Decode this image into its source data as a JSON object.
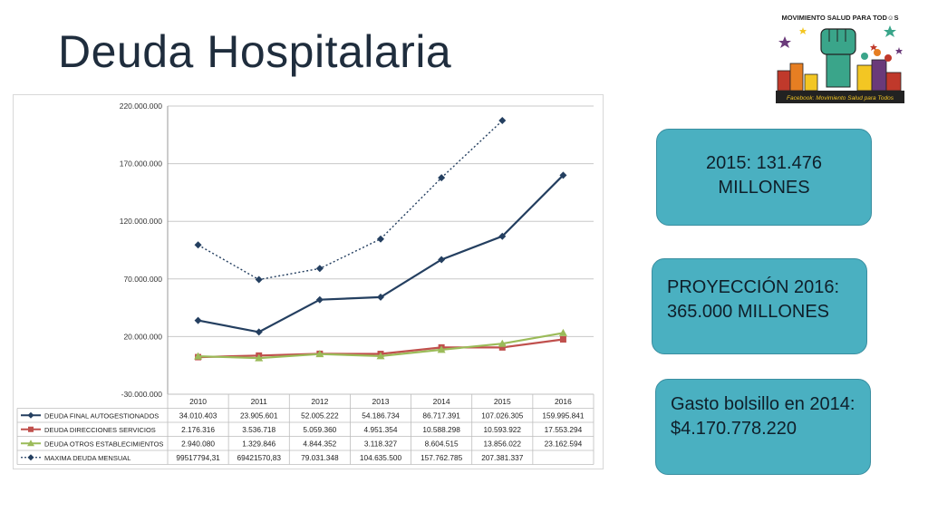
{
  "slide": {
    "title": "Deuda Hospitalaria"
  },
  "callouts": [
    {
      "text": "2015: 131.476 MILLONES"
    },
    {
      "text": "PROYECCIÓN 2016: 365.000 MILLONES"
    },
    {
      "text": "Gasto bolsillo en 2014: $4.170.778.220"
    }
  ],
  "logo": {
    "top_text": "MOVIMIENTO SALUD PARA TOD☺S",
    "bottom_text": "Facebook: Movimiento Salud para Todos",
    "colors": {
      "green": "#3aa58a",
      "red": "#c0392b",
      "purple": "#6a3a7a",
      "yellow": "#f3c623",
      "dark": "#222222"
    }
  },
  "chart_data": {
    "type": "line",
    "categories": [
      "2010",
      "2011",
      "2012",
      "2013",
      "2014",
      "2015",
      "2016"
    ],
    "ylim": [
      -30000000,
      220000000
    ],
    "yticks": [
      -30000000,
      20000000,
      70000000,
      120000000,
      170000000,
      220000000
    ],
    "ytick_labels": [
      "-30.000.000",
      "20.000.000",
      "70.000.000",
      "120.000.000",
      "170.000.000",
      "220.000.000"
    ],
    "grid": true,
    "legend": "table-below",
    "series": [
      {
        "name": "DEUDA FINAL AUTOGESTIONADOS",
        "color": "#243f60",
        "marker": "diamond",
        "style": "solid",
        "values": [
          34010403,
          23905601,
          52005222,
          54186734,
          86717391,
          107026305,
          159995841
        ],
        "labels": [
          "34.010.403",
          "23.905.601",
          "52.005.222",
          "54.186.734",
          "86.717.391",
          "107.026.305",
          "159.995.841"
        ]
      },
      {
        "name": "DEUDA DIRECCIONES SERVICIOS",
        "color": "#c0504d",
        "marker": "square",
        "style": "solid",
        "values": [
          2176316,
          3536718,
          5059360,
          4951354,
          10588298,
          10593922,
          17553294
        ],
        "labels": [
          "2.176.316",
          "3.536.718",
          "5.059.360",
          "4.951.354",
          "10.588.298",
          "10.593.922",
          "17.553.294"
        ]
      },
      {
        "name": "DEUDA OTROS ESTABLECIMIENTOS",
        "color": "#9bbb59",
        "marker": "triangle",
        "style": "solid",
        "values": [
          2940080,
          1329846,
          4844352,
          3118327,
          8604515,
          13856022,
          23162594
        ],
        "labels": [
          "2.940.080",
          "1.329.846",
          "4.844.352",
          "3.118.327",
          "8.604.515",
          "13.856.022",
          "23.162.594"
        ]
      },
      {
        "name": "MAXIMA DEUDA MENSUAL",
        "color": "#243f60",
        "marker": "diamond",
        "style": "dotted",
        "values": [
          99517794.31,
          69421570.83,
          79031348,
          104635500,
          157762785,
          207381337,
          null
        ],
        "labels": [
          "99517794,31",
          "69421570,83",
          "79.031.348",
          "104.635.500",
          "157.762.785",
          "207.381.337",
          ""
        ]
      }
    ]
  }
}
